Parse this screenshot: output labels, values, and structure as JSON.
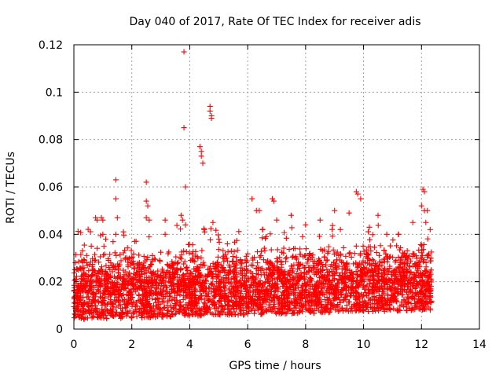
{
  "chart_data": {
    "type": "scatter",
    "title": "Day 040 of 2017, Rate Of TEC Index for receiver adis",
    "xlabel": "GPS time / hours",
    "ylabel": "ROTI / TECUs",
    "xlim": [
      0,
      14
    ],
    "ylim": [
      0,
      0.12
    ],
    "xticks": [
      "0",
      "2",
      "4",
      "6",
      "8",
      "10",
      "12",
      "14"
    ],
    "yticks": [
      "0",
      "0.02",
      "0.04",
      "0.06",
      "0.08",
      "0.1",
      "0.12"
    ],
    "grid": true,
    "marker": "+",
    "color": "#ff0000",
    "dense_band": {
      "x_range": [
        0.0,
        12.35
      ],
      "baseline_low": 0.004,
      "baseline_center": 0.014,
      "baseline_high": 0.03,
      "point_count": 3500
    },
    "series": [
      {
        "name": "ROTI",
        "points": [
          [
            0.05,
            0.028
          ],
          [
            0.3,
            0.033
          ],
          [
            0.6,
            0.035
          ],
          [
            0.75,
            0.047
          ],
          [
            0.8,
            0.046
          ],
          [
            0.95,
            0.047
          ],
          [
            1.0,
            0.046
          ],
          [
            1.0,
            0.04
          ],
          [
            1.1,
            0.038
          ],
          [
            1.45,
            0.063
          ],
          [
            1.45,
            0.055
          ],
          [
            1.5,
            0.047
          ],
          [
            1.45,
            0.04
          ],
          [
            2.0,
            0.03
          ],
          [
            2.1,
            0.037
          ],
          [
            2.5,
            0.062
          ],
          [
            2.5,
            0.054
          ],
          [
            2.55,
            0.052
          ],
          [
            2.5,
            0.047
          ],
          [
            2.6,
            0.046
          ],
          [
            3.15,
            0.046
          ],
          [
            3.15,
            0.04
          ],
          [
            3.7,
            0.048
          ],
          [
            3.75,
            0.046
          ],
          [
            3.8,
            0.117
          ],
          [
            3.8,
            0.085
          ],
          [
            3.85,
            0.06
          ],
          [
            3.85,
            0.044
          ],
          [
            4.35,
            0.077
          ],
          [
            4.4,
            0.075
          ],
          [
            4.4,
            0.073
          ],
          [
            4.45,
            0.07
          ],
          [
            4.5,
            0.042
          ],
          [
            4.7,
            0.094
          ],
          [
            4.7,
            0.092
          ],
          [
            4.75,
            0.09
          ],
          [
            4.75,
            0.089
          ],
          [
            4.8,
            0.045
          ],
          [
            5.0,
            0.038
          ],
          [
            5.3,
            0.036
          ],
          [
            6.15,
            0.055
          ],
          [
            6.3,
            0.05
          ],
          [
            6.4,
            0.05
          ],
          [
            6.85,
            0.055
          ],
          [
            6.9,
            0.054
          ],
          [
            7.0,
            0.046
          ],
          [
            7.5,
            0.048
          ],
          [
            8.0,
            0.044
          ],
          [
            8.5,
            0.046
          ],
          [
            9.0,
            0.05
          ],
          [
            9.2,
            0.042
          ],
          [
            9.5,
            0.049
          ],
          [
            9.75,
            0.058
          ],
          [
            9.8,
            0.057
          ],
          [
            9.9,
            0.055
          ],
          [
            10.2,
            0.043
          ],
          [
            10.5,
            0.048
          ],
          [
            10.8,
            0.04
          ],
          [
            11.2,
            0.04
          ],
          [
            11.7,
            0.045
          ],
          [
            12.05,
            0.059
          ],
          [
            12.1,
            0.058
          ],
          [
            12.0,
            0.052
          ],
          [
            12.1,
            0.05
          ],
          [
            12.2,
            0.05
          ],
          [
            12.3,
            0.042
          ],
          [
            12.15,
            0.045
          ]
        ]
      }
    ]
  }
}
